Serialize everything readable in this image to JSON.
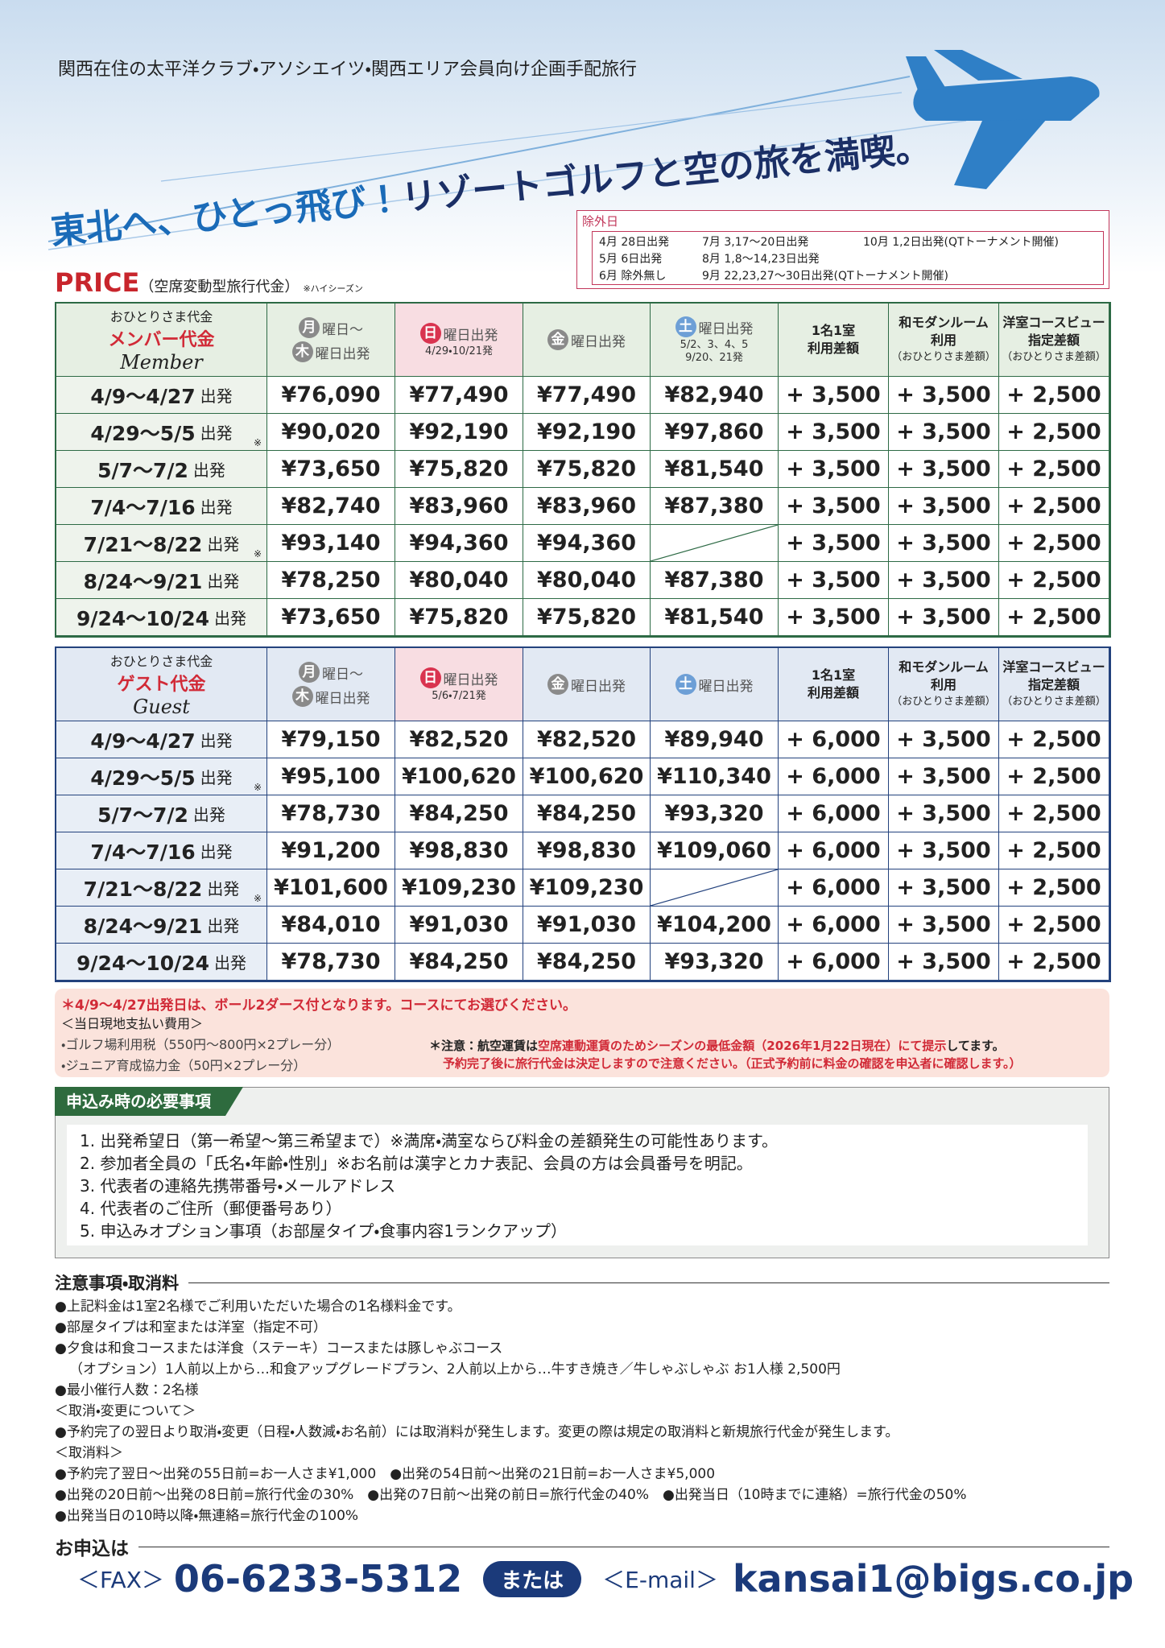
{
  "header": {
    "subtitle": "関西在住の太平洋クラブ・アソシエイツ・関西エリア会員向け企画手配旅行",
    "headline_a": "東北へ、ひとっ飛び！",
    "headline_b": "リゾートゴルフと空の旅を満喫。"
  },
  "exclusion": {
    "title": "除外日",
    "rows": [
      [
        "4月 28日出発",
        "7月 3,17～20日出発",
        "10月 1,2日出発(QTトーナメント開催)"
      ],
      [
        "5月 6日出発",
        "8月 1,8～14,23日出発"
      ],
      [
        "6月 除外無し",
        "9月 22,23,27～30日出発(QTトーナメント開催)"
      ]
    ]
  },
  "price": {
    "title": "PRICE",
    "note": "（空席変動型旅行代金）",
    "season": "※ハイシーズン"
  },
  "member": {
    "head": {
      "label": "おひとりさま代金",
      "name": "メンバー代金",
      "en": "Member",
      "days": [
        {
          "c1": "月",
          "t1": "曜日～",
          "c2": "木",
          "t2": "曜日出発"
        },
        {
          "c1": "日",
          "t1": "曜日出発",
          "sub": [
            "4/29・10/21発"
          ]
        },
        {
          "c1": "金",
          "t1": "曜日出発"
        },
        {
          "c1": "土",
          "t1": "曜日出発",
          "sub": [
            "5/2、3、4、5",
            "9/20、21発"
          ]
        }
      ],
      "extras": [
        [
          "1名1室",
          "利用差額"
        ],
        [
          "和モダンルーム",
          "利用",
          "（おひとりさま差額）"
        ],
        [
          "洋室コースビュー",
          "指定差額",
          "（おひとりさま差額）"
        ]
      ]
    },
    "rows": [
      {
        "date": "4/9～4/27",
        "suffix": "出発",
        "cells": [
          "¥76,090",
          "¥77,490",
          "¥77,490",
          "¥82,940",
          "+ 3,500",
          "+ 3,500",
          "+ 2,500"
        ]
      },
      {
        "date": "4/29～5/5",
        "suffix": "出発",
        "mark": "※",
        "cells": [
          "¥90,020",
          "¥92,190",
          "¥92,190",
          "¥97,860",
          "+ 3,500",
          "+ 3,500",
          "+ 2,500"
        ]
      },
      {
        "date": "5/7～7/2",
        "suffix": "出発",
        "cells": [
          "¥73,650",
          "¥75,820",
          "¥75,820",
          "¥81,540",
          "+ 3,500",
          "+ 3,500",
          "+ 2,500"
        ]
      },
      {
        "date": "7/4～7/16",
        "suffix": "出発",
        "cells": [
          "¥82,740",
          "¥83,960",
          "¥83,960",
          "¥87,380",
          "+ 3,500",
          "+ 3,500",
          "+ 2,500"
        ]
      },
      {
        "date": "7/21～8/22",
        "suffix": "出発",
        "mark": "※",
        "cells": [
          "¥93,140",
          "¥94,360",
          "¥94,360",
          null,
          "+ 3,500",
          "+ 3,500",
          "+ 2,500"
        ]
      },
      {
        "date": "8/24～9/21",
        "suffix": "出発",
        "cells": [
          "¥78,250",
          "¥80,040",
          "¥80,040",
          "¥87,380",
          "+ 3,500",
          "+ 3,500",
          "+ 2,500"
        ]
      },
      {
        "date": "9/24～10/24",
        "suffix": "出発",
        "cells": [
          "¥73,650",
          "¥75,820",
          "¥75,820",
          "¥81,540",
          "+ 3,500",
          "+ 3,500",
          "+ 2,500"
        ]
      }
    ]
  },
  "guest": {
    "head": {
      "label": "おひとりさま代金",
      "name": "ゲスト代金",
      "en": "Guest",
      "days": [
        {
          "c1": "月",
          "t1": "曜日～",
          "c2": "木",
          "t2": "曜日出発"
        },
        {
          "c1": "日",
          "t1": "曜日出発",
          "sub": [
            "5/6・7/21発"
          ]
        },
        {
          "c1": "金",
          "t1": "曜日出発"
        },
        {
          "c1": "土",
          "t1": "曜日出発"
        }
      ],
      "extras": [
        [
          "1名1室",
          "利用差額"
        ],
        [
          "和モダンルーム",
          "利用",
          "（おひとりさま差額）"
        ],
        [
          "洋室コースビュー",
          "指定差額",
          "（おひとりさま差額）"
        ]
      ]
    },
    "rows": [
      {
        "date": "4/9～4/27",
        "suffix": "出発",
        "cells": [
          "¥79,150",
          "¥82,520",
          "¥82,520",
          "¥89,940",
          "+ 6,000",
          "+ 3,500",
          "+ 2,500"
        ]
      },
      {
        "date": "4/29～5/5",
        "suffix": "出発",
        "mark": "※",
        "cells": [
          "¥95,100",
          "¥100,620",
          "¥100,620",
          "¥110,340",
          "+ 6,000",
          "+ 3,500",
          "+ 2,500"
        ]
      },
      {
        "date": "5/7～7/2",
        "suffix": "出発",
        "cells": [
          "¥78,730",
          "¥84,250",
          "¥84,250",
          "¥93,320",
          "+ 6,000",
          "+ 3,500",
          "+ 2,500"
        ]
      },
      {
        "date": "7/4～7/16",
        "suffix": "出発",
        "cells": [
          "¥91,200",
          "¥98,830",
          "¥98,830",
          "¥109,060",
          "+ 6,000",
          "+ 3,500",
          "+ 2,500"
        ]
      },
      {
        "date": "7/21～8/22",
        "suffix": "出発",
        "mark": "※",
        "cells": [
          "¥101,600",
          "¥109,230",
          "¥109,230",
          null,
          "+ 6,000",
          "+ 3,500",
          "+ 2,500"
        ]
      },
      {
        "date": "8/24～9/21",
        "suffix": "出発",
        "cells": [
          "¥84,010",
          "¥91,030",
          "¥91,030",
          "¥104,200",
          "+ 6,000",
          "+ 3,500",
          "+ 2,500"
        ]
      },
      {
        "date": "9/24～10/24",
        "suffix": "出発",
        "cells": [
          "¥78,730",
          "¥84,250",
          "¥84,250",
          "¥93,320",
          "+ 6,000",
          "+ 3,500",
          "+ 2,500"
        ]
      }
    ]
  },
  "notes": {
    "ball": "＊4/9～4/27出発日は、ボール2ダース付となります。コースにてお選びください。",
    "onsite_title": "＜当日現地支払い費用＞",
    "onsite": [
      "・ゴルフ場利用税（550円～800円×2プレー分）",
      "・ジュニア育成協力金（50円×2プレー分）"
    ],
    "air_a": "＊注意：航空運賃は",
    "air_b": "空席連動運賃のためシーズンの最低金額（2026年1月22日現在）にて提示",
    "air_c": "してます。",
    "air_d": "予約完了後に旅行代金は決定しますので注意ください。（正式予約前に料金の確認を申込者に確認します。）"
  },
  "requirements": {
    "title": "申込み時の必要事項",
    "items": [
      "1. 出発希望日（第一希望～第三希望まで）※満席・満室ならび料金の差額発生の可能性あります。",
      "2. 参加者全員の「氏名・年齢・性別」※お名前は漢字とカナ表記、会員の方は会員番号を明記。",
      "3. 代表者の連絡先携帯番号・メールアドレス",
      "4. 代表者のご住所（郵便番号あり）",
      "5. 申込みオプション事項（お部屋タイプ・食事内容1ランクアップ）"
    ]
  },
  "cautions": {
    "title": "注意事項・取消料",
    "lines": [
      "●上記料金は1室2名様でご利用いただいた場合の1名様料金です。",
      "●部屋タイプは和室または洋室（指定不可）",
      "●夕食は和食コースまたは洋食（ステーキ）コースまたは豚しゃぶコース",
      "（オプション）1人前以上から…和食アップグレードプラン、2人前以上から…牛すき焼き／牛しゃぶしゃぶ お1人様 2,500円",
      "●最小催行人数：2名様",
      "＜取消・変更について＞",
      "●予約完了の翌日より取消・変更（日程・人数減・お名前）には取消料が発生します。変更の際は規定の取消料と新規旅行代金が発生します。",
      "＜取消料＞",
      "●予約完了翌日～出発の55日前=お一人さま¥1,000　●出発の54日前～出発の21日前=お一人さま¥5,000",
      "●出発の20日前～出発の8日前=旅行代金の30%　●出発の7日前～出発の前日=旅行代金の40%　●出発当日（10時までに連絡）=旅行代金の50%",
      "●出発当日の10時以降・無連絡=旅行代金の100%"
    ]
  },
  "apply": {
    "title": "お申込は",
    "fax_label": "＜FAX＞",
    "fax": "06-6233-5312",
    "or": "または",
    "mail_label": "＜E-mail＞",
    "mail": "kansai1@bigs.co.jp"
  }
}
